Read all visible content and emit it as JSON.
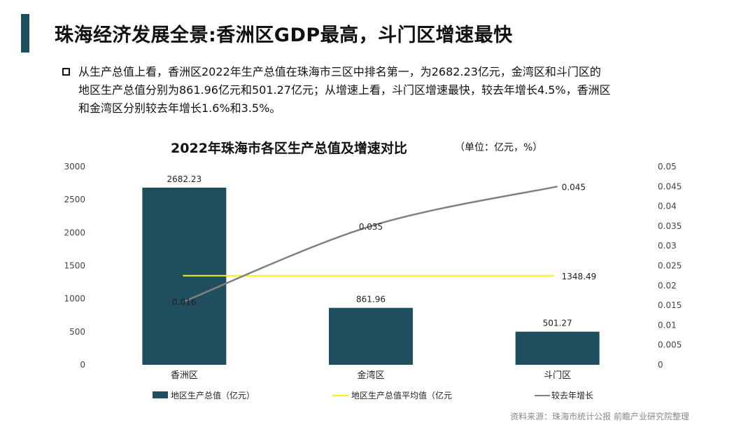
{
  "page": {
    "title": "珠海经济发展全景:香洲区GDP最高，斗门区增速最快",
    "bullet_lines": [
      "从生产总值上看，香洲区2022年生产总值在珠海市三区中排名第一，为2682.23亿元，金湾区和斗门区的",
      "地区生产总值分别为861.96亿元和501.27亿元；从增速上看，斗门区增速最快，较去年增长4.5%，香洲区",
      "和金湾区分别较去年增长1.6%和3.5%。"
    ],
    "source": "资料来源：珠海市统计公报 前瞻产业研究院整理"
  },
  "chart_data": {
    "type": "bar",
    "title": "2022年珠海市各区生产总值及增速对比",
    "unit": "（单位：亿元，%）",
    "categories": [
      "香洲区",
      "金湾区",
      "斗门区"
    ],
    "y_left": {
      "min": 0,
      "max": 3000,
      "ticks": [
        "0",
        "500",
        "1000",
        "1500",
        "2000",
        "2500",
        "3000"
      ]
    },
    "y_right": {
      "min": 0,
      "max": 0.05,
      "ticks": [
        "0",
        "0.005",
        "0.01",
        "0.015",
        "0.02",
        "0.025",
        "0.03",
        "0.035",
        "0.04",
        "0.045",
        "0.05"
      ]
    },
    "series": [
      {
        "name": "地区生产总值（亿元）",
        "kind": "bar",
        "axis": "left",
        "color": "#1f4e5f",
        "values": [
          2682.23,
          861.96,
          501.27
        ],
        "labels": [
          "2682.23",
          "861.96",
          "501.27"
        ]
      },
      {
        "name": "地区生产总值平均值（亿元",
        "kind": "line",
        "axis": "left",
        "color": "#f5f500",
        "values": [
          1348.49,
          1348.49,
          1348.49
        ],
        "label": "1348.49"
      },
      {
        "name": "较去年增长",
        "kind": "line",
        "axis": "right",
        "color": "#808080",
        "values": [
          0.016,
          0.035,
          0.045
        ],
        "labels": [
          "0.016",
          "0.035",
          "0.045"
        ]
      }
    ]
  }
}
